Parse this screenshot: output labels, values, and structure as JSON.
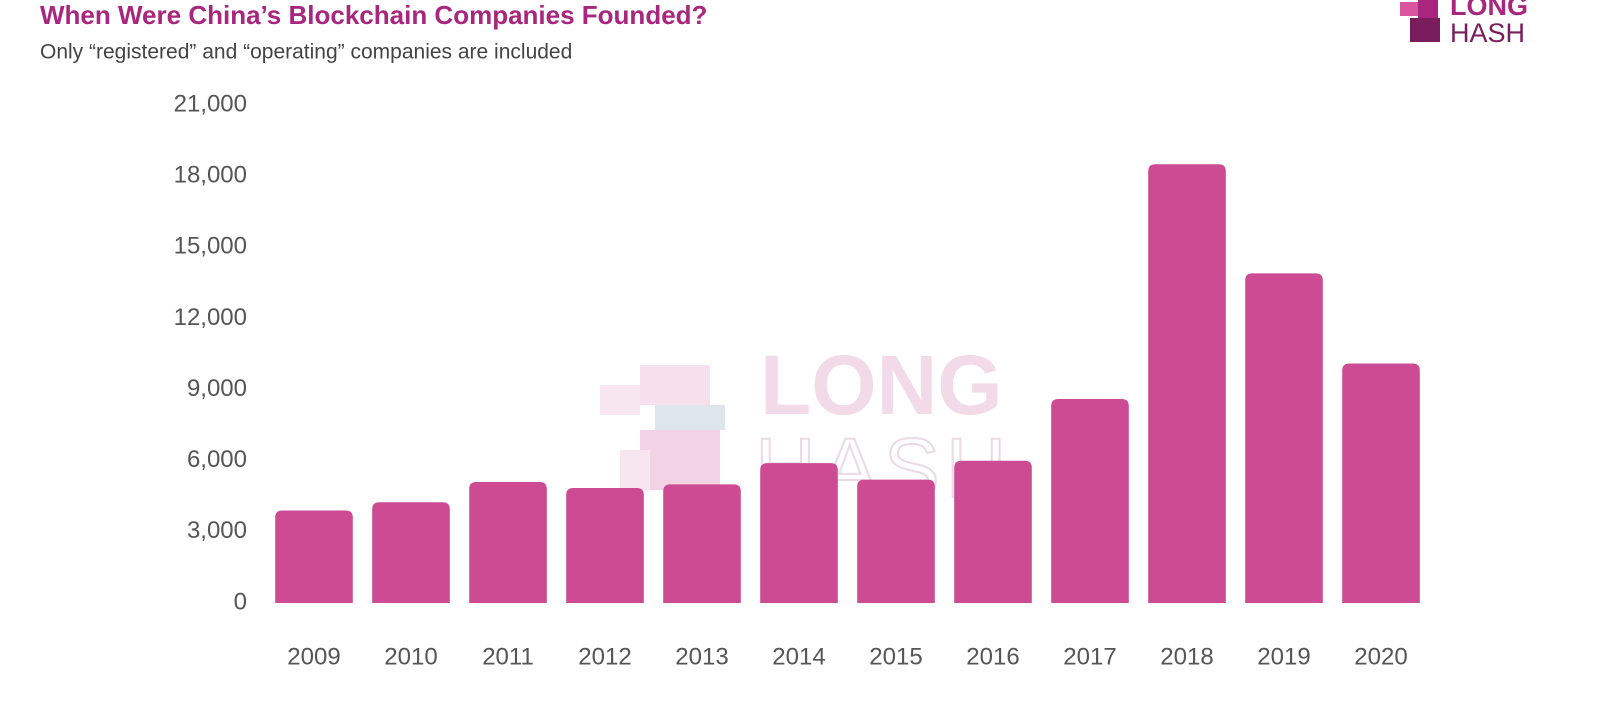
{
  "chart_data": {
    "type": "bar",
    "title": "When Were China’s Blockchain Companies Founded?",
    "subtitle": "Only “registered” and “operating” companies are included",
    "logo": {
      "line1": "LONG",
      "line2": "HASH"
    },
    "categories": [
      "2009",
      "2010",
      "2011",
      "2012",
      "2013",
      "2014",
      "2015",
      "2016",
      "2017",
      "2018",
      "2019",
      "2020"
    ],
    "values": [
      3900,
      4250,
      5100,
      4850,
      5000,
      5900,
      5200,
      6000,
      8600,
      18500,
      13900,
      10100
    ],
    "color": "#cc4b93",
    "ylim": [
      0,
      21000
    ],
    "yticks": [
      0,
      {
        "value": 3000,
        "label": "3,000"
      },
      {
        "value": 6000,
        "label": "6,000"
      },
      {
        "value": 9000,
        "label": "9,000"
      },
      {
        "value": 12000,
        "label": "12,000"
      },
      {
        "value": 15000,
        "label": "15,000"
      },
      {
        "value": 18000,
        "label": "18,000"
      },
      {
        "value": 21000,
        "label": "21,000"
      }
    ],
    "grid": false
  }
}
